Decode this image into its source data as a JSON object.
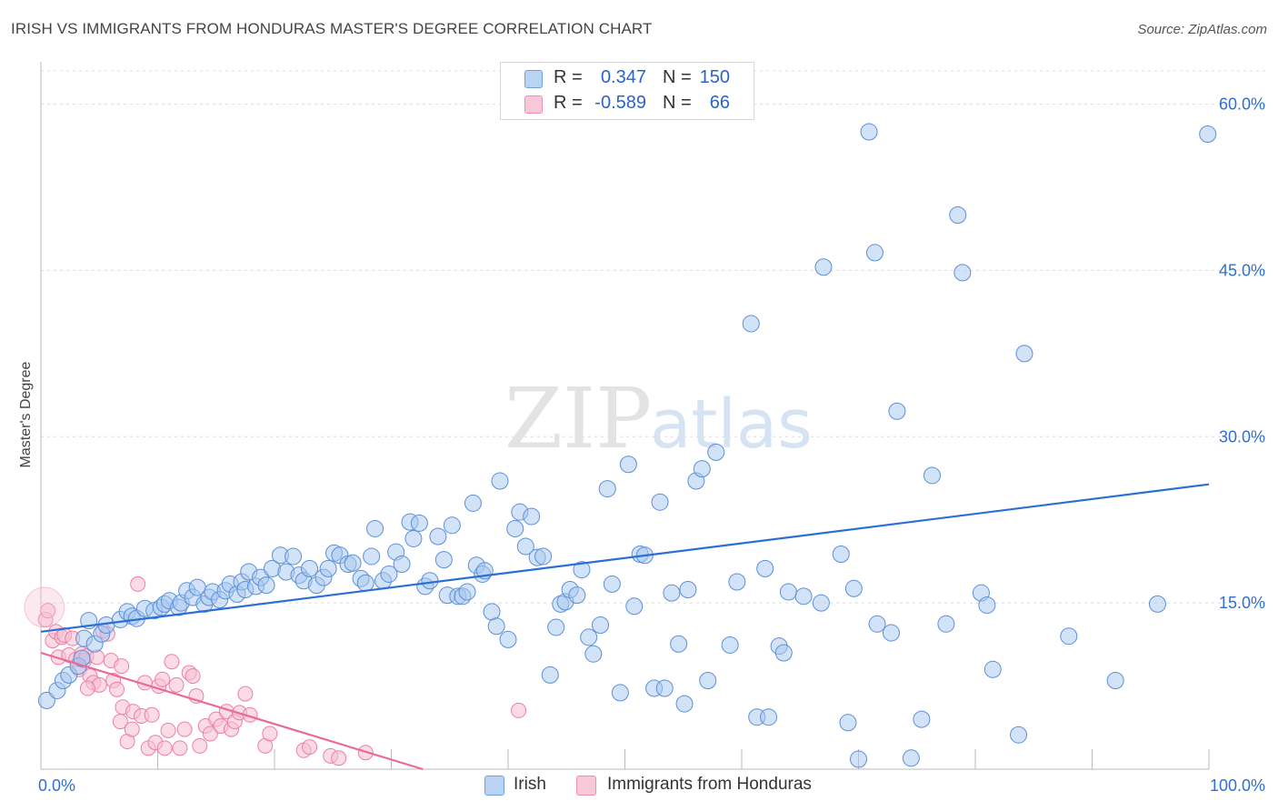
{
  "title": "IRISH VS IMMIGRANTS FROM HONDURAS MASTER'S DEGREE CORRELATION CHART",
  "source": "Source: ZipAtlas.com",
  "watermark": {
    "zip": "ZIP",
    "atlas": "atlas"
  },
  "legend": {
    "rows": [
      {
        "r_label": "R =",
        "r_value": "0.347",
        "n_label": "N =",
        "n_value": "150"
      },
      {
        "r_label": "R =",
        "r_value": "-0.589",
        "n_label": "N =",
        "n_value": "66"
      }
    ]
  },
  "bottom_legend": {
    "series1": "Irish",
    "series2": "Immigrants from Honduras"
  },
  "colors": {
    "irish_fill": "#a8c8f0",
    "irish_stroke": "#5b8fd9",
    "irish_line": "#2b6fd6",
    "hond_fill": "#f7bfd2",
    "hond_stroke": "#ec7fa5",
    "hond_line": "#e8699a",
    "tick_label": "#2f6fd1",
    "grid": "#dcdcdc"
  },
  "chart_data": {
    "type": "scatter",
    "title": "IRISH VS IMMIGRANTS FROM HONDURAS MASTER'S DEGREE CORRELATION CHART",
    "xlabel": "",
    "ylabel": "Master's Degree",
    "xlim": [
      0,
      100
    ],
    "ylim": [
      0,
      63
    ],
    "x_tick_labels": [
      "0.0%",
      "100.0%"
    ],
    "y_ticks": [
      15,
      30,
      45,
      60
    ],
    "y_tick_labels": [
      "15.0%",
      "30.0%",
      "45.0%",
      "60.0%"
    ],
    "legend_position": "top-center",
    "series": [
      {
        "name": "Irish",
        "r": 0.347,
        "n": 150,
        "trend": {
          "x": [
            0,
            100
          ],
          "y": [
            12.4,
            25.7
          ]
        },
        "points": [
          [
            0.5,
            6.2
          ],
          [
            1.4,
            7.1
          ],
          [
            1.9,
            8.0
          ],
          [
            2.4,
            8.5
          ],
          [
            3.2,
            9.3
          ],
          [
            3.5,
            10.0
          ],
          [
            3.7,
            11.8
          ],
          [
            4.1,
            13.4
          ],
          [
            4.6,
            11.3
          ],
          [
            5.2,
            12.2
          ],
          [
            5.6,
            13.0
          ],
          [
            6.8,
            13.5
          ],
          [
            7.4,
            14.2
          ],
          [
            7.8,
            13.8
          ],
          [
            8.2,
            13.6
          ],
          [
            8.9,
            14.5
          ],
          [
            9.7,
            14.3
          ],
          [
            10.3,
            14.6
          ],
          [
            10.6,
            14.9
          ],
          [
            11.0,
            15.2
          ],
          [
            11.8,
            14.6
          ],
          [
            12.0,
            15.0
          ],
          [
            12.5,
            16.1
          ],
          [
            13.0,
            15.5
          ],
          [
            13.4,
            16.4
          ],
          [
            14.0,
            14.9
          ],
          [
            14.4,
            15.5
          ],
          [
            14.7,
            16.0
          ],
          [
            15.3,
            15.3
          ],
          [
            15.8,
            16.1
          ],
          [
            16.2,
            16.7
          ],
          [
            16.8,
            15.8
          ],
          [
            17.2,
            16.9
          ],
          [
            17.5,
            16.2
          ],
          [
            17.8,
            17.8
          ],
          [
            18.4,
            16.5
          ],
          [
            18.8,
            17.3
          ],
          [
            19.3,
            16.6
          ],
          [
            19.8,
            18.1
          ],
          [
            20.5,
            19.3
          ],
          [
            21.0,
            17.8
          ],
          [
            21.6,
            19.2
          ],
          [
            22.1,
            17.5
          ],
          [
            22.5,
            17.0
          ],
          [
            23.0,
            18.1
          ],
          [
            23.6,
            16.6
          ],
          [
            24.2,
            17.3
          ],
          [
            24.6,
            18.1
          ],
          [
            25.1,
            19.5
          ],
          [
            25.6,
            19.3
          ],
          [
            26.3,
            18.5
          ],
          [
            26.7,
            18.6
          ],
          [
            27.4,
            17.2
          ],
          [
            27.8,
            16.8
          ],
          [
            28.3,
            19.2
          ],
          [
            28.6,
            21.7
          ],
          [
            29.3,
            17.0
          ],
          [
            29.8,
            17.6
          ],
          [
            30.4,
            19.6
          ],
          [
            30.9,
            18.5
          ],
          [
            31.6,
            22.3
          ],
          [
            31.9,
            20.8
          ],
          [
            32.4,
            22.2
          ],
          [
            32.9,
            16.5
          ],
          [
            33.3,
            17.0
          ],
          [
            34.0,
            21.0
          ],
          [
            34.5,
            18.9
          ],
          [
            34.8,
            15.7
          ],
          [
            35.2,
            22.0
          ],
          [
            35.7,
            15.6
          ],
          [
            36.1,
            15.6
          ],
          [
            36.5,
            16.0
          ],
          [
            37.0,
            24.0
          ],
          [
            37.3,
            18.4
          ],
          [
            37.8,
            17.6
          ],
          [
            38.0,
            17.9
          ],
          [
            38.6,
            14.2
          ],
          [
            39.0,
            12.9
          ],
          [
            39.3,
            26.0
          ],
          [
            40.0,
            11.7
          ],
          [
            40.6,
            21.7
          ],
          [
            41.0,
            23.2
          ],
          [
            41.5,
            20.1
          ],
          [
            42.0,
            22.8
          ],
          [
            42.5,
            19.1
          ],
          [
            43.0,
            19.2
          ],
          [
            43.6,
            8.5
          ],
          [
            44.1,
            12.8
          ],
          [
            44.5,
            14.9
          ],
          [
            44.9,
            15.1
          ],
          [
            45.3,
            16.2
          ],
          [
            45.9,
            15.7
          ],
          [
            46.3,
            18.0
          ],
          [
            46.9,
            11.9
          ],
          [
            47.3,
            10.4
          ],
          [
            47.9,
            13.0
          ],
          [
            48.5,
            25.3
          ],
          [
            48.9,
            16.7
          ],
          [
            49.6,
            6.9
          ],
          [
            50.3,
            27.5
          ],
          [
            50.8,
            14.7
          ],
          [
            51.3,
            19.4
          ],
          [
            51.7,
            19.3
          ],
          [
            52.5,
            7.3
          ],
          [
            53.0,
            24.1
          ],
          [
            53.4,
            7.3
          ],
          [
            54.0,
            15.9
          ],
          [
            54.6,
            11.3
          ],
          [
            55.1,
            5.9
          ],
          [
            55.4,
            16.2
          ],
          [
            56.1,
            26.0
          ],
          [
            56.6,
            27.1
          ],
          [
            57.1,
            8.0
          ],
          [
            57.8,
            28.6
          ],
          [
            59.0,
            11.2
          ],
          [
            59.6,
            16.9
          ],
          [
            60.8,
            40.2
          ],
          [
            61.3,
            4.7
          ],
          [
            62.0,
            18.1
          ],
          [
            62.3,
            4.7
          ],
          [
            63.2,
            11.1
          ],
          [
            63.6,
            10.5
          ],
          [
            64.0,
            16.0
          ],
          [
            65.3,
            15.6
          ],
          [
            66.8,
            15.0
          ],
          [
            67.0,
            45.3
          ],
          [
            68.5,
            19.4
          ],
          [
            69.1,
            4.2
          ],
          [
            69.6,
            16.3
          ],
          [
            70.9,
            57.5
          ],
          [
            71.4,
            46.6
          ],
          [
            71.6,
            13.1
          ],
          [
            70.0,
            0.9
          ],
          [
            72.8,
            12.3
          ],
          [
            73.3,
            32.3
          ],
          [
            75.4,
            4.5
          ],
          [
            76.3,
            26.5
          ],
          [
            77.5,
            13.1
          ],
          [
            78.5,
            50.0
          ],
          [
            78.9,
            44.8
          ],
          [
            80.5,
            15.9
          ],
          [
            81.0,
            14.8
          ],
          [
            83.7,
            3.1
          ],
          [
            84.2,
            37.5
          ],
          [
            95.6,
            14.9
          ],
          [
            99.9,
            57.3
          ],
          [
            74.5,
            1.0
          ],
          [
            81.5,
            9.0
          ],
          [
            88.0,
            12.0
          ],
          [
            92.0,
            8.0
          ]
        ]
      },
      {
        "name": "Immigrants from Honduras",
        "r": -0.589,
        "n": 66,
        "trend": {
          "x": [
            0,
            32.7
          ],
          "y": [
            10.5,
            0
          ]
        },
        "points": [
          [
            0.4,
            13.5
          ],
          [
            0.6,
            14.3
          ],
          [
            1.0,
            11.6
          ],
          [
            1.3,
            12.4
          ],
          [
            1.5,
            10.1
          ],
          [
            1.8,
            11.9
          ],
          [
            2.0,
            12.1
          ],
          [
            2.4,
            10.3
          ],
          [
            2.7,
            11.8
          ],
          [
            3.0,
            9.9
          ],
          [
            3.3,
            9.0
          ],
          [
            3.5,
            10.4
          ],
          [
            3.7,
            9.8
          ],
          [
            3.9,
            10.2
          ],
          [
            4.2,
            8.4
          ],
          [
            4.5,
            7.8
          ],
          [
            4.8,
            10.1
          ],
          [
            5.0,
            7.6
          ],
          [
            5.3,
            12.5
          ],
          [
            5.7,
            12.2
          ],
          [
            6.0,
            9.8
          ],
          [
            6.2,
            8.0
          ],
          [
            6.5,
            7.2
          ],
          [
            6.8,
            4.3
          ],
          [
            7.0,
            5.6
          ],
          [
            7.4,
            2.5
          ],
          [
            7.8,
            3.6
          ],
          [
            7.9,
            5.2
          ],
          [
            8.3,
            16.7
          ],
          [
            8.6,
            4.8
          ],
          [
            8.9,
            7.8
          ],
          [
            9.2,
            1.9
          ],
          [
            9.5,
            4.9
          ],
          [
            9.8,
            2.4
          ],
          [
            10.1,
            7.5
          ],
          [
            10.4,
            8.1
          ],
          [
            10.6,
            1.9
          ],
          [
            10.9,
            3.5
          ],
          [
            11.2,
            9.7
          ],
          [
            11.6,
            7.6
          ],
          [
            11.9,
            1.9
          ],
          [
            12.3,
            3.6
          ],
          [
            12.7,
            8.7
          ],
          [
            13.0,
            8.4
          ],
          [
            13.3,
            6.6
          ],
          [
            13.6,
            2.1
          ],
          [
            14.1,
            3.9
          ],
          [
            14.5,
            3.2
          ],
          [
            15.0,
            4.5
          ],
          [
            15.4,
            3.9
          ],
          [
            15.9,
            5.2
          ],
          [
            16.3,
            3.6
          ],
          [
            16.6,
            4.3
          ],
          [
            17.0,
            5.1
          ],
          [
            17.5,
            6.8
          ],
          [
            17.9,
            4.9
          ],
          [
            19.2,
            2.1
          ],
          [
            19.6,
            3.2
          ],
          [
            22.5,
            1.7
          ],
          [
            23.0,
            2.0
          ],
          [
            24.8,
            1.2
          ],
          [
            25.5,
            1.0
          ],
          [
            27.8,
            1.5
          ],
          [
            40.9,
            5.3
          ],
          [
            4.0,
            7.3
          ],
          [
            6.9,
            9.3
          ]
        ]
      }
    ]
  }
}
